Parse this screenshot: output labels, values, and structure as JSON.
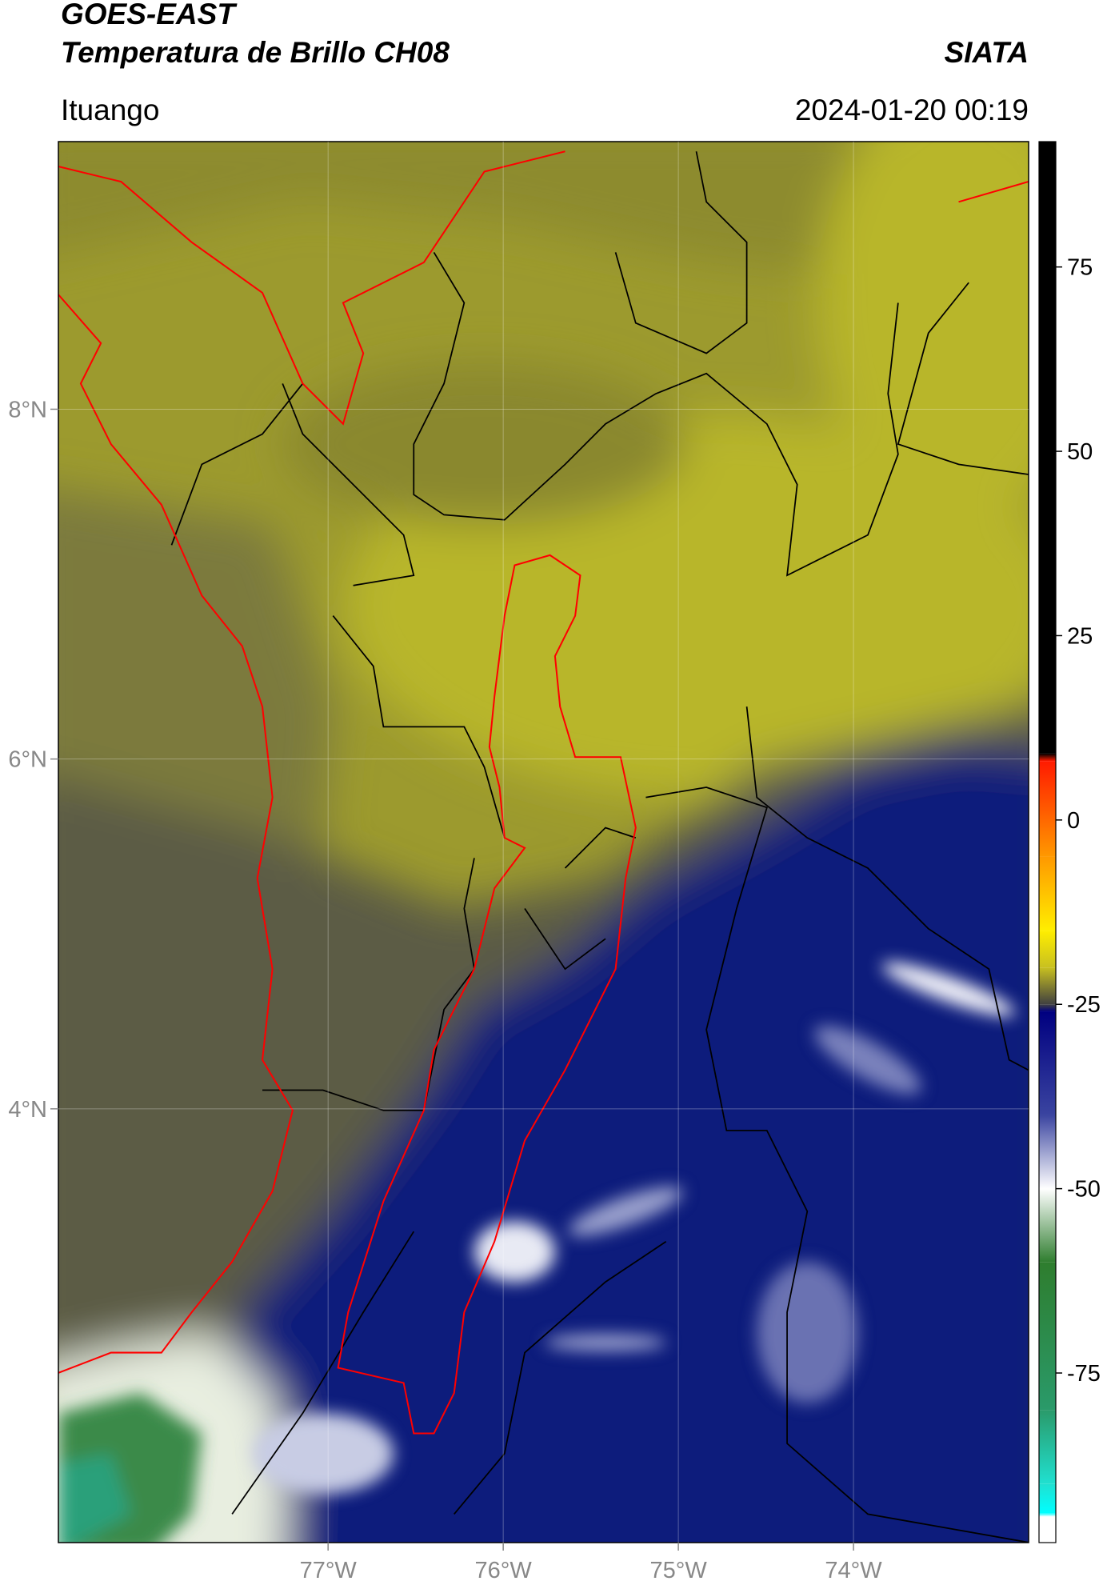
{
  "header": {
    "title_line1": "GOES-EAST",
    "title_line2": "Temperatura de Brillo CH08",
    "agency": "SIATA",
    "location": "Ituango",
    "datetime": "2024-01-20 00:19"
  },
  "chart_data": {
    "type": "map",
    "xlim": [
      -78.54,
      -73.0
    ],
    "ylim": [
      1.52,
      9.53
    ],
    "xticks": [
      {
        "value": -77,
        "label": "77°W"
      },
      {
        "value": -76,
        "label": "76°W"
      },
      {
        "value": -75,
        "label": "75°W"
      },
      {
        "value": -74,
        "label": "74°W"
      }
    ],
    "yticks": [
      {
        "value": 4,
        "label": "4°N"
      },
      {
        "value": 6,
        "label": "6°N"
      },
      {
        "value": 8,
        "label": "8°N"
      }
    ],
    "grid": true,
    "colorbar": {
      "lim": [
        -98,
        92
      ],
      "ticks": [
        -75,
        -50,
        -25,
        0,
        25,
        50,
        75
      ],
      "stops": [
        {
          "value": 92,
          "color": "#000000"
        },
        {
          "value": 9,
          "color": "#000000"
        },
        {
          "value": 8,
          "color": "#ff1a00"
        },
        {
          "value": -5,
          "color": "#ff9900"
        },
        {
          "value": -15,
          "color": "#ffee00"
        },
        {
          "value": -20,
          "color": "#c8c020"
        },
        {
          "value": -25,
          "color": "#404040"
        },
        {
          "value": -26,
          "color": "#000080"
        },
        {
          "value": -40,
          "color": "#3a44a0"
        },
        {
          "value": -50,
          "color": "#ffffff"
        },
        {
          "value": -60,
          "color": "#2e7d2e"
        },
        {
          "value": -80,
          "color": "#2a9a6a"
        },
        {
          "value": -90,
          "color": "#20e0d0"
        },
        {
          "value": -94,
          "color": "#00ffff"
        },
        {
          "value": -94.5,
          "color": "#ffffff"
        },
        {
          "value": -98,
          "color": "#ffffff"
        }
      ]
    }
  }
}
